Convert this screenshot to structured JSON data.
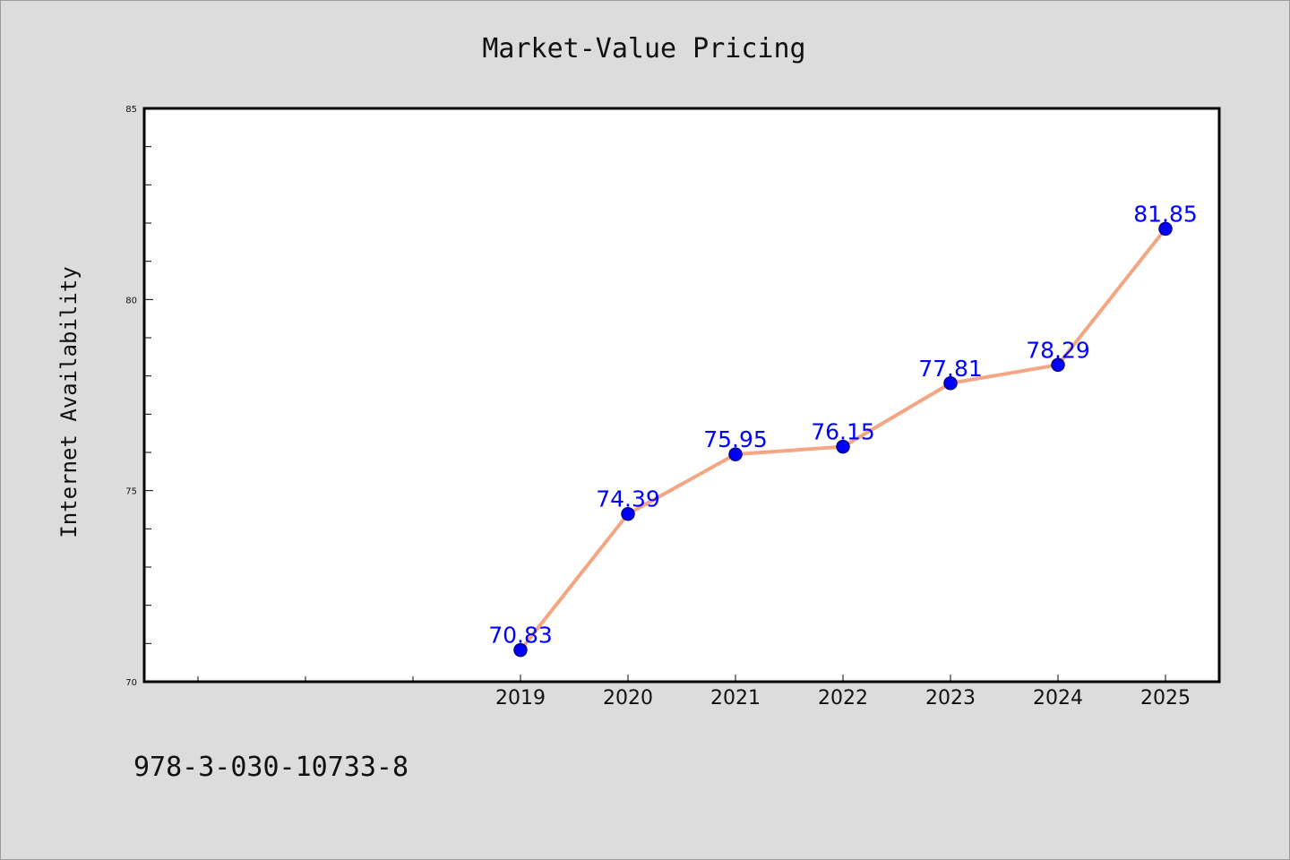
{
  "chart_data": {
    "type": "line",
    "title": "Market-Value Pricing",
    "ylabel": "Internet Availability",
    "xlabel": "",
    "categories": [
      "2019",
      "2020",
      "2021",
      "2022",
      "2023",
      "2024",
      "2025"
    ],
    "values": [
      70.83,
      74.39,
      75.95,
      76.15,
      77.81,
      78.29,
      81.85
    ],
    "data_labels": [
      "70.83",
      "74.39",
      "75.95",
      "76.15",
      "77.81",
      "78.29",
      "81.85"
    ],
    "ylim": [
      70,
      85
    ],
    "yticks": [
      70,
      75,
      80,
      85
    ],
    "ytick_labels": [
      "70",
      "75",
      "80",
      "85"
    ],
    "grid": false,
    "colors": {
      "line": "#f4a582",
      "marker": "#0000ff",
      "marker_edge": "#00008b",
      "data_label": "#0000ff"
    }
  },
  "footer_text": "978-3-030-10733-8"
}
